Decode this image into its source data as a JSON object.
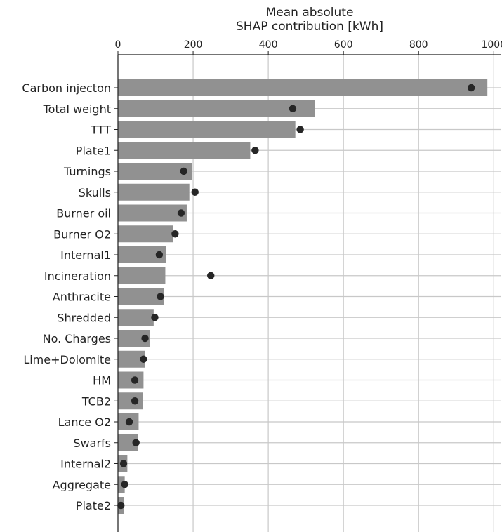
{
  "chart_data": {
    "type": "bar",
    "orientation": "horizontal",
    "xlabel": [
      "Mean absolute",
      "SHAP contribution [kWh]"
    ],
    "xlim": [
      0,
      1020
    ],
    "x_ticks": [
      0,
      200,
      400,
      600,
      800,
      1000
    ],
    "x_axis_position": "top",
    "grid": true,
    "categories": [
      "Carbon injecton",
      "Total weight",
      "TTT",
      "Plate1",
      "Turnings",
      "Skulls",
      "Burner oil",
      "Burner O2",
      "Internal1",
      "Incineration",
      "Anthracite",
      "Shredded",
      "No. Charges",
      "Lime+Dolomite",
      "HM",
      "TCB2",
      "Lance O2",
      "Swarfs",
      "Internal2",
      "Aggregate",
      "Plate2"
    ],
    "series": [
      {
        "values": [
          983,
          524,
          472,
          352,
          198,
          190,
          183,
          147,
          128,
          126,
          123,
          95,
          85,
          72,
          68,
          66,
          55,
          54,
          25,
          18,
          16
        ],
        "color": "#919191",
        "marker": "bar"
      },
      {
        "values": [
          940,
          465,
          485,
          365,
          175,
          205,
          168,
          152,
          110,
          247,
          113,
          98,
          72,
          68,
          45,
          45,
          30,
          48,
          15,
          18,
          8
        ],
        "color": "#262626",
        "marker": "dot"
      }
    ]
  }
}
